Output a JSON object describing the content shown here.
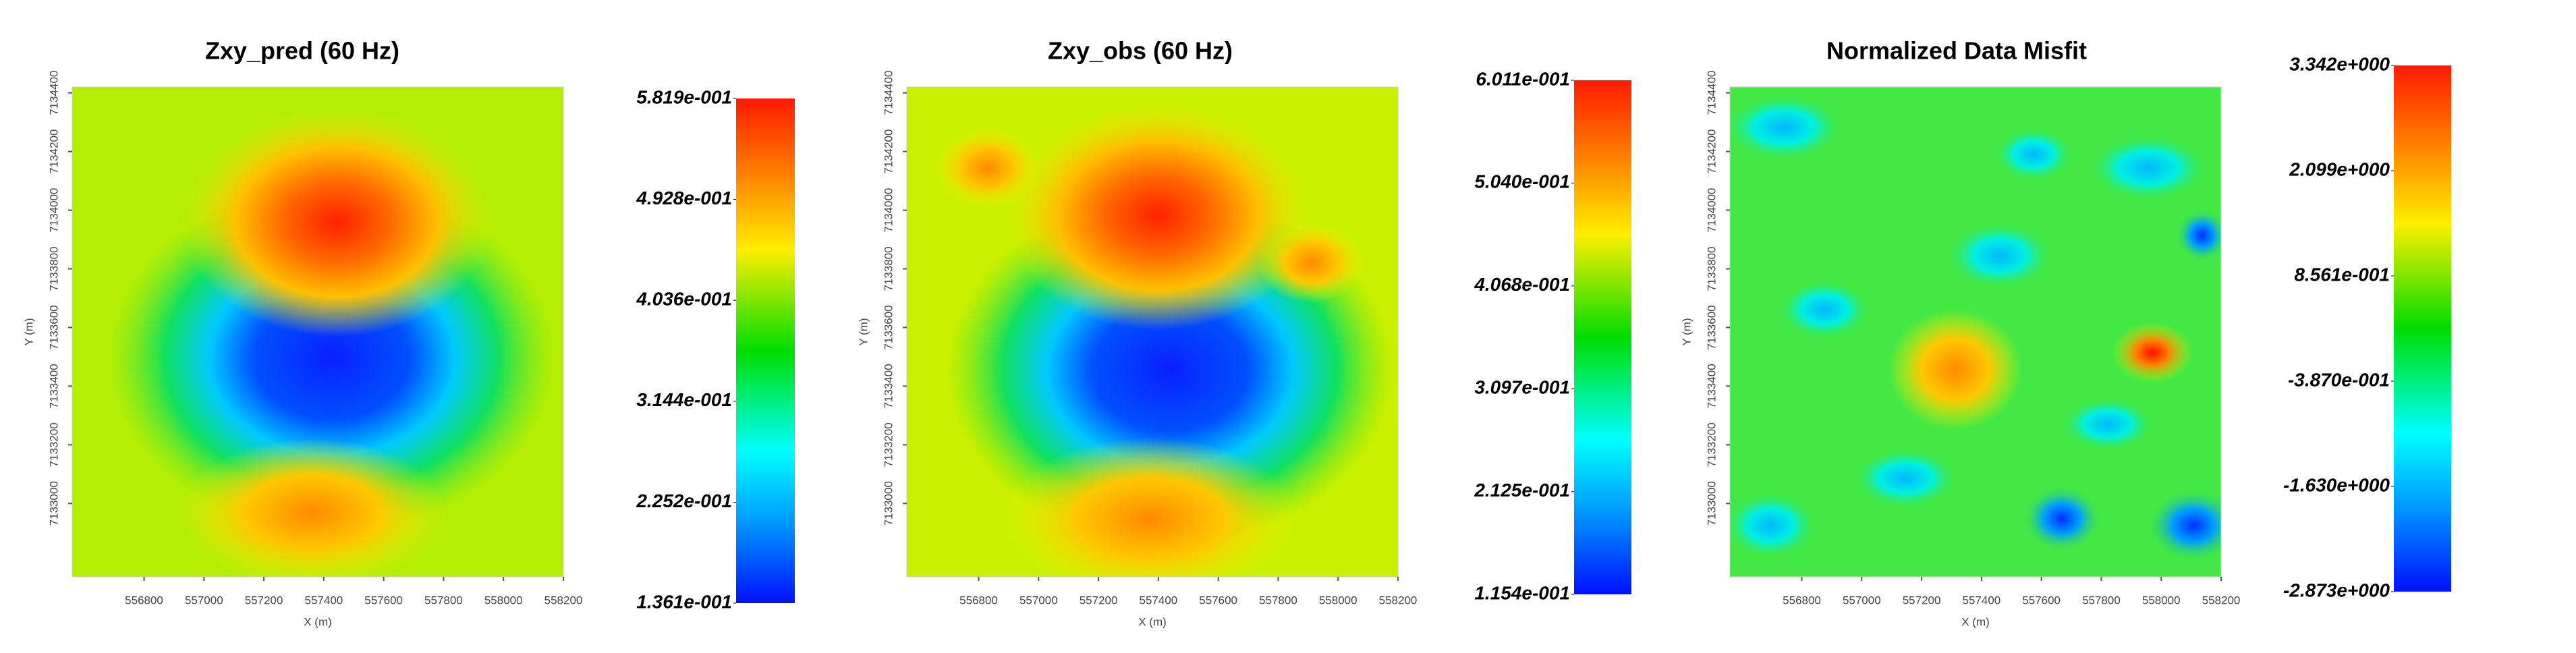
{
  "chart_data": [
    {
      "type": "heatmap",
      "title": "Zxy_pred (60 Hz)",
      "xlabel": "X (m)",
      "ylabel": "Y (m)",
      "xlim": [
        556560,
        558200
      ],
      "ylim": [
        7132750,
        7134420
      ],
      "xticks": [
        556800,
        557000,
        557200,
        557400,
        557600,
        557800,
        558000,
        558200
      ],
      "yticks": [
        7133000,
        7133200,
        7133400,
        7133600,
        7133800,
        7134000,
        7134200,
        7134400
      ],
      "colorbar": {
        "lim": [
          0.1361,
          0.5819
        ],
        "ticks": [
          {
            "value": 0.5819,
            "label": "5.819e-001"
          },
          {
            "value": 0.4928,
            "label": "4.928e-001"
          },
          {
            "value": 0.4036,
            "label": "4.036e-001"
          },
          {
            "value": 0.3144,
            "label": "3.144e-001"
          },
          {
            "value": 0.2252,
            "label": "2.252e-001"
          },
          {
            "value": 0.1361,
            "label": "1.361e-001"
          }
        ]
      }
    },
    {
      "type": "heatmap",
      "title": "Zxy_obs (60 Hz)",
      "xlabel": "X (m)",
      "ylabel": "Y (m)",
      "xlim": [
        556560,
        558200
      ],
      "ylim": [
        7132750,
        7134420
      ],
      "xticks": [
        556800,
        557000,
        557200,
        557400,
        557600,
        557800,
        558000,
        558200
      ],
      "yticks": [
        7133000,
        7133200,
        7133400,
        7133600,
        7133800,
        7134000,
        7134200,
        7134400
      ],
      "colorbar": {
        "lim": [
          0.1154,
          0.6011
        ],
        "ticks": [
          {
            "value": 0.6011,
            "label": "6.011e-001"
          },
          {
            "value": 0.504,
            "label": "5.040e-001"
          },
          {
            "value": 0.4068,
            "label": "4.068e-001"
          },
          {
            "value": 0.3097,
            "label": "3.097e-001"
          },
          {
            "value": 0.2125,
            "label": "2.125e-001"
          },
          {
            "value": 0.1154,
            "label": "1.154e-001"
          }
        ]
      }
    },
    {
      "type": "heatmap",
      "title": "Normalized Data Misfit",
      "xlabel": "X (m)",
      "ylabel": "Y (m)",
      "xlim": [
        556560,
        558200
      ],
      "ylim": [
        7132750,
        7134420
      ],
      "xticks": [
        556800,
        557000,
        557200,
        557400,
        557600,
        557800,
        558000,
        558200
      ],
      "yticks": [
        7133000,
        7133200,
        7133400,
        7133600,
        7133800,
        7134000,
        7134200,
        7134400
      ],
      "colorbar": {
        "lim": [
          -2.873,
          3.342
        ],
        "ticks": [
          {
            "value": 3.342,
            "label": "3.342e+000"
          },
          {
            "value": 2.099,
            "label": "2.099e+000"
          },
          {
            "value": 0.8561,
            "label": "8.561e-001"
          },
          {
            "value": -0.387,
            "label": "-3.870e-001"
          },
          {
            "value": -1.63,
            "label": "-1.630e+000"
          },
          {
            "value": -2.873,
            "label": "-2.873e+000"
          }
        ]
      }
    }
  ]
}
